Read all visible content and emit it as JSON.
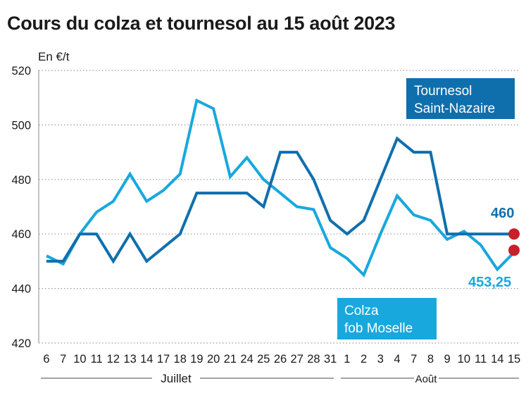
{
  "chart_data": {
    "type": "line",
    "title": "Cours du colza et tournesol au 15 août 2023",
    "ylabel": "En €/t",
    "ylim": [
      420,
      520
    ],
    "yticks": [
      420,
      440,
      460,
      480,
      500,
      520
    ],
    "grid": "horizontal dotted",
    "categories": [
      "6",
      "7",
      "10",
      "11",
      "12",
      "13",
      "14",
      "17",
      "18",
      "19",
      "20",
      "21",
      "24",
      "25",
      "26",
      "27",
      "28",
      "31",
      "1",
      "2",
      "3",
      "4",
      "7",
      "8",
      "9",
      "10",
      "11",
      "14",
      "15"
    ],
    "months": [
      {
        "label": "Juillet"
      },
      {
        "label": "Août"
      }
    ],
    "series": [
      {
        "name": "Tournesol Saint-Nazaire",
        "color": "#0f6fad",
        "values": [
          450,
          450,
          460,
          460,
          450,
          460,
          450,
          455,
          460,
          475,
          475,
          475,
          475,
          470,
          490,
          490,
          480,
          465,
          460,
          465,
          480,
          495,
          490,
          490,
          460,
          460,
          460,
          460,
          460
        ],
        "end_label": "460"
      },
      {
        "name": "Colza fob Moselle",
        "color": "#18a8de",
        "values": [
          452,
          449,
          460,
          468,
          472,
          482,
          472,
          476,
          482,
          509,
          506,
          481,
          488,
          480,
          475,
          470,
          469,
          455,
          451,
          445,
          460,
          474,
          467,
          465,
          458,
          461,
          456,
          447,
          453.25
        ],
        "end_label": "453,25"
      }
    ],
    "legend": [
      {
        "line1": "Tournesol",
        "line2": "Saint-Nazaire",
        "placement": "top-right"
      },
      {
        "line1": "Colza",
        "line2": "fob Moselle",
        "placement": "bottom-right"
      }
    ],
    "end_marker_color": "#c8202a"
  }
}
